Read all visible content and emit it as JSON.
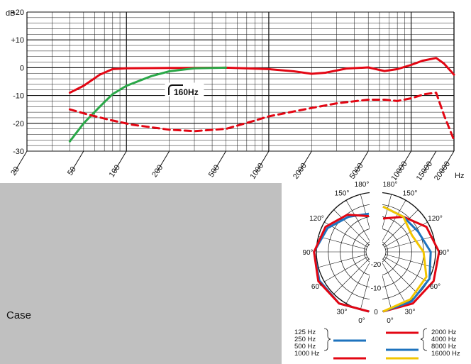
{
  "page": {
    "case_label": "Case"
  },
  "chart_data": [
    {
      "type": "line",
      "title": "",
      "xlabel": "",
      "ylabel": "",
      "y_unit": "dB",
      "x_unit": "Hz",
      "x_scale": "log",
      "xlim": [
        20,
        20000
      ],
      "ylim": [
        -30,
        20
      ],
      "grid": true,
      "x_ticks": [
        20,
        50,
        100,
        200,
        500,
        1000,
        2000,
        5000,
        10000,
        15000,
        20000
      ],
      "x_tick_labels": [
        "20",
        "50",
        "100",
        "200",
        "500",
        "1000",
        "2000",
        "5000",
        "10000",
        "15000",
        "20000"
      ],
      "y_ticks": [
        20,
        10,
        0,
        -10,
        -20,
        -30
      ],
      "y_tick_labels": [
        "+20",
        "+10",
        "0",
        "-10",
        "-20",
        "-30"
      ],
      "annotation": "160Hz",
      "series": [
        {
          "style": "solid",
          "color": "#e30613",
          "points": [
            [
              40,
              -9
            ],
            [
              50,
              -6.5
            ],
            [
              65,
              -2.5
            ],
            [
              80,
              -0.5
            ],
            [
              100,
              -0.2
            ],
            [
              200,
              -0.1
            ],
            [
              500,
              0
            ],
            [
              1000,
              -0.5
            ],
            [
              1500,
              -1.3
            ],
            [
              2000,
              -2.2
            ],
            [
              2500,
              -1.8
            ],
            [
              3500,
              -0.3
            ],
            [
              5000,
              0.1
            ],
            [
              6500,
              -1.2
            ],
            [
              8000,
              -0.5
            ],
            [
              10000,
              1
            ],
            [
              12000,
              2.5
            ],
            [
              15000,
              3.5
            ],
            [
              17000,
              1.5
            ],
            [
              20000,
              -2.5
            ]
          ]
        },
        {
          "style": "solid",
          "color": "#2aa848",
          "points": [
            [
              40,
              -26.5
            ],
            [
              50,
              -20
            ],
            [
              65,
              -14
            ],
            [
              80,
              -9.5
            ],
            [
              100,
              -6.5
            ],
            [
              150,
              -3
            ],
            [
              200,
              -1.3
            ],
            [
              300,
              -0.2
            ],
            [
              500,
              0
            ]
          ]
        },
        {
          "style": "dashed",
          "color": "#e30613",
          "points": [
            [
              40,
              -15
            ],
            [
              55,
              -17
            ],
            [
              80,
              -19
            ],
            [
              110,
              -20.5
            ],
            [
              200,
              -22.3
            ],
            [
              300,
              -22.8
            ],
            [
              500,
              -22
            ],
            [
              800,
              -19
            ],
            [
              1000,
              -17.5
            ],
            [
              2000,
              -14.5
            ],
            [
              3000,
              -12.8
            ],
            [
              5000,
              -11.5
            ],
            [
              6500,
              -11.5
            ],
            [
              8000,
              -12
            ],
            [
              10000,
              -11
            ],
            [
              12500,
              -9.5
            ],
            [
              15000,
              -9
            ],
            [
              17000,
              -17
            ],
            [
              20000,
              -26
            ]
          ]
        }
      ]
    },
    {
      "type": "polar",
      "angle_labels": [
        "180°",
        "150°",
        "120°",
        "90°",
        "60°",
        "30°",
        "0°"
      ],
      "radial_labels": [
        "0",
        "-10",
        "-20"
      ],
      "legend_left": [
        "125 Hz",
        "250 Hz",
        "500 Hz",
        "1000 Hz"
      ],
      "legend_right": [
        "2000 Hz",
        "4000 Hz",
        "8000 Hz",
        "16000 Hz"
      ],
      "legend_colors_left": [
        "#1e73be",
        "#e30613"
      ],
      "legend_colors_right": [
        "#e30613",
        "#1e73be",
        "#f2c500"
      ],
      "left_series": [
        {
          "frequencies": "125 Hz, 250 Hz, 500 Hz",
          "color": "#1e73be",
          "points": [
            [
              0,
              0
            ],
            [
              30,
              0
            ],
            [
              60,
              -1
            ],
            [
              90,
              -2
            ],
            [
              120,
              -5
            ],
            [
              150,
              -8
            ],
            [
              180,
              -9
            ]
          ]
        },
        {
          "frequencies": "1000 Hz",
          "color": "#e30613",
          "points": [
            [
              0,
              0
            ],
            [
              30,
              0
            ],
            [
              60,
              -0.5
            ],
            [
              90,
              -2
            ],
            [
              120,
              -4
            ],
            [
              150,
              -7
            ],
            [
              180,
              -10
            ]
          ]
        }
      ],
      "right_series": [
        {
          "frequencies": "2000 Hz, 4000 Hz",
          "color": "#e30613",
          "points": [
            [
              0,
              0
            ],
            [
              30,
              0
            ],
            [
              60,
              -0.5
            ],
            [
              90,
              -1.5
            ],
            [
              120,
              -4
            ],
            [
              150,
              -8
            ],
            [
              180,
              -11
            ]
          ]
        },
        {
          "frequencies": "8000 Hz",
          "color": "#1e73be",
          "points": [
            [
              0,
              0
            ],
            [
              30,
              -1
            ],
            [
              60,
              -2.5
            ],
            [
              90,
              -5
            ],
            [
              120,
              -8
            ],
            [
              150,
              -8
            ],
            [
              180,
              -6
            ]
          ]
        },
        {
          "frequencies": "16000 Hz",
          "color": "#f2c500",
          "points": [
            [
              0,
              0
            ],
            [
              30,
              -2
            ],
            [
              60,
              -4
            ],
            [
              90,
              -8
            ],
            [
              120,
              -11
            ],
            [
              150,
              -8
            ],
            [
              180,
              -6
            ]
          ]
        }
      ]
    }
  ]
}
